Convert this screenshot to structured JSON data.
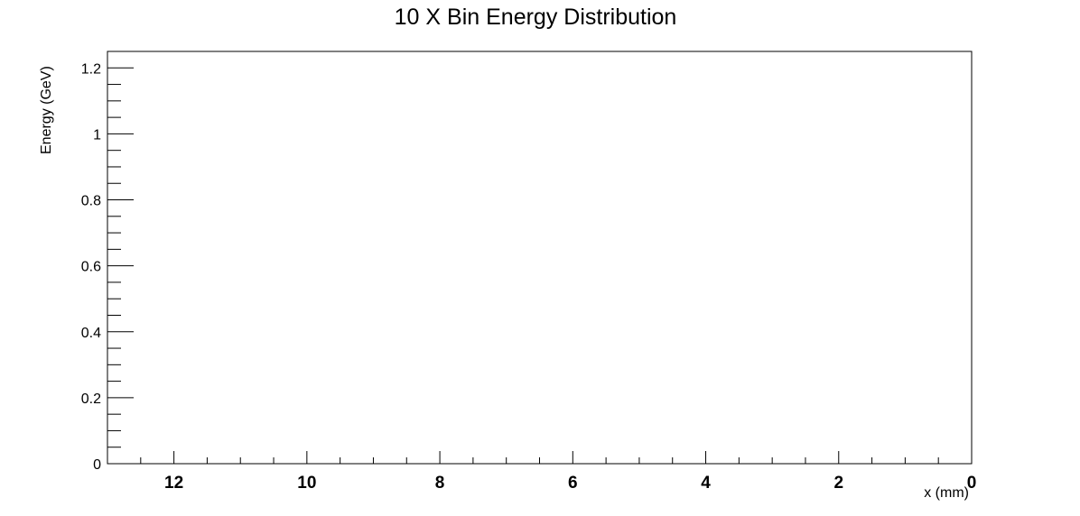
{
  "chart_data": {
    "type": "bar",
    "title": "10 X Bin Energy Distribution",
    "xlabel": "x (mm)",
    "ylabel": "Energy (GeV)",
    "x_axis_reversed": true,
    "xlim": [
      13,
      0
    ],
    "ylim": [
      0,
      1.25
    ],
    "x_ticks": [
      "12",
      "10",
      "8",
      "6",
      "4",
      "2",
      "0"
    ],
    "x_tick_values": [
      12,
      10,
      8,
      6,
      4,
      2,
      0
    ],
    "y_ticks": [
      "0",
      "0.2",
      "0.4",
      "0.6",
      "0.8",
      "1",
      "1.2"
    ],
    "y_tick_values": [
      0,
      0.2,
      0.4,
      0.6,
      0.8,
      1.0,
      1.2
    ],
    "x_minor_tick_values": [
      12.5,
      11.5,
      11,
      10.5,
      9.5,
      9,
      8.5,
      7.5,
      7,
      6.5,
      5.5,
      5,
      4.5,
      3.5,
      3,
      2.5,
      1.5,
      1,
      0.5
    ],
    "y_minor_tick_values": [
      0.05,
      0.1,
      0.15,
      0.25,
      0.3,
      0.35,
      0.45,
      0.5,
      0.55,
      0.65,
      0.7,
      0.75,
      0.85,
      0.9,
      0.95,
      1.05,
      1.1,
      1.15
    ],
    "series": [],
    "grid": false,
    "legend": "none"
  }
}
